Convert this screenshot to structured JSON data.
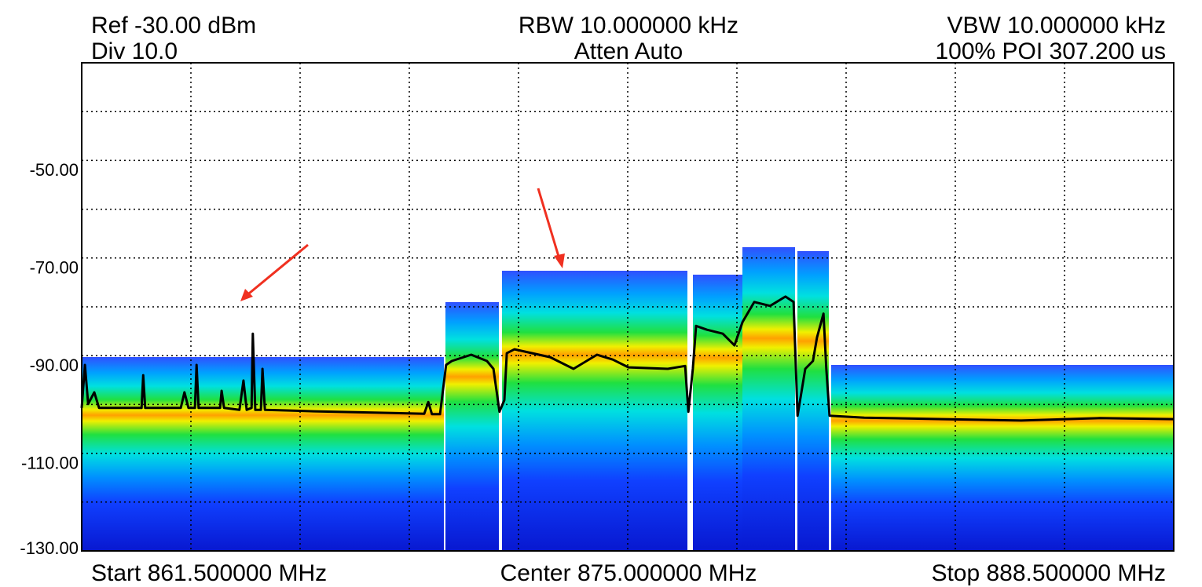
{
  "chart_data": {
    "type": "line",
    "ref_label": "Ref -30.00 dBm",
    "div_label": "Div 10.0",
    "rbw_label": "RBW 10.000000 kHz",
    "atten_label": "Atten Auto",
    "vbw_label": "VBW 10.000000 kHz",
    "poi_label": "100% POI 307.200 us",
    "start_label": "Start 861.500000 MHz",
    "center_label": "Center 875.000000 MHz",
    "stop_label": "Stop 888.500000 MHz",
    "xlim": [
      861.5,
      888.5
    ],
    "ylim": [
      -130,
      -30
    ],
    "yticks": [
      {
        "value": -50,
        "label": "-50.00"
      },
      {
        "value": -70,
        "label": "-70.00"
      },
      {
        "value": -90,
        "label": "-90.00"
      },
      {
        "value": -110,
        "label": "-110.00"
      },
      {
        "value": -130,
        "label": "-130.00"
      }
    ],
    "xgrid": [
      864.2,
      866.9,
      869.6,
      872.3,
      875.0,
      877.7,
      880.4,
      883.1,
      885.8
    ],
    "ygrid": [
      -40,
      -50,
      -60,
      -70,
      -80,
      -90,
      -100,
      -110,
      -120
    ],
    "grid": true,
    "x": [
      861.5,
      861.58,
      861.66,
      861.81,
      861.93,
      862.98,
      863.02,
      863.07,
      863.95,
      864.04,
      864.14,
      864.3,
      864.34,
      864.39,
      864.92,
      864.96,
      865.02,
      865.4,
      865.5,
      865.58,
      865.7,
      865.73,
      865.79,
      865.93,
      865.97,
      866.03,
      867.25,
      869.97,
      870.07,
      870.16,
      870.36,
      870.51,
      870.65,
      871.13,
      871.52,
      871.68,
      871.83,
      871.95,
      872.01,
      872.2,
      873.08,
      873.66,
      874.24,
      874.63,
      875.02,
      875.99,
      876.42,
      876.5,
      876.61,
      876.69,
      876.96,
      877.35,
      877.64,
      877.84,
      878.13,
      878.52,
      878.9,
      879.1,
      879.2,
      879.39,
      879.58,
      879.68,
      879.84,
      879.91,
      879.99,
      880.85,
      882.79,
      884.73,
      886.67,
      888.5
    ],
    "series": [
      {
        "color": "#000000",
        "values": [
          -100.7,
          -91.9,
          -99.9,
          -97.5,
          -100.7,
          -100.7,
          -94.0,
          -100.7,
          -100.7,
          -97.5,
          -100.7,
          -100.7,
          -91.9,
          -100.7,
          -100.7,
          -97.2,
          -100.7,
          -101.1,
          -95.1,
          -101.1,
          -100.7,
          -85.5,
          -101.1,
          -101.1,
          -92.7,
          -101.1,
          -101.4,
          -101.9,
          -99.5,
          -102.0,
          -102.0,
          -91.9,
          -91.1,
          -89.8,
          -91.1,
          -92.7,
          -101.5,
          -99.1,
          -89.5,
          -88.7,
          -90.3,
          -92.7,
          -89.8,
          -90.8,
          -92.4,
          -92.7,
          -92.1,
          -101.5,
          -92.7,
          -83.9,
          -84.7,
          -85.5,
          -87.9,
          -83.1,
          -79.0,
          -79.8,
          -77.9,
          -79.0,
          -102.3,
          -92.7,
          -91.1,
          -86.3,
          -81.4,
          -92.7,
          -102.3,
          -102.7,
          -103.0,
          -103.3,
          -102.8,
          -103.0
        ]
      }
    ]
  }
}
